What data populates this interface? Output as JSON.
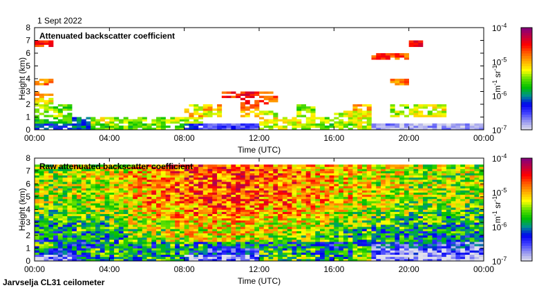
{
  "date_label": "1 Sept 2022",
  "footer": "Jarvselja CL31 ceilometer",
  "chart_data": [
    {
      "type": "heatmap",
      "title": "Attenuated backscatter coefficient",
      "xlabel": "Time (UTC)",
      "ylabel": "Height (km)",
      "xticks": [
        "00:00",
        "04:00",
        "08:00",
        "12:00",
        "16:00",
        "20:00",
        "00:00"
      ],
      "yticks": [
        "0",
        "1",
        "2",
        "3",
        "4",
        "5",
        "6",
        "7",
        "8"
      ],
      "xlim_hours": [
        0,
        24
      ],
      "ylim_km": [
        0,
        8
      ],
      "grid": false,
      "value_scale": "log10",
      "colorbar": {
        "label": "m-1 sr-1",
        "ticks": [
          "-7",
          "-6",
          "-5",
          "-4"
        ],
        "range": [
          -7,
          -4
        ],
        "placement": "right"
      },
      "cell_hours": 1,
      "cell_km": 0.5,
      "rows_bottom_up": [
        [
          -6.2,
          -6.3,
          -6.0,
          -5.6,
          -5.5,
          -5.6,
          -5.5,
          -5.6,
          -6.3,
          -6.6,
          -6.5,
          -6.6,
          -5.4,
          -5.3,
          -5.4,
          -5.6,
          -5.5,
          -5.3,
          -6.7,
          -6.8,
          -6.8,
          -6.8,
          -6.8,
          -6.8
        ],
        [
          -5.8,
          -5.6,
          -6.0,
          -5.3,
          -5.4,
          -5.5,
          -5.5,
          -5.4,
          -5.4,
          null,
          null,
          null,
          -5.2,
          -5.3,
          -5.2,
          -5.4,
          -5.3,
          -5.2,
          null,
          null,
          null,
          null,
          null,
          null
        ],
        [
          -5.6,
          -5.4,
          null,
          null,
          null,
          null,
          null,
          null,
          -5.0,
          -5.3,
          null,
          -5.1,
          -5.4,
          null,
          -5.3,
          null,
          -5.3,
          -5.2,
          null,
          -5.4,
          -5.2,
          -5.3,
          null,
          null
        ],
        [
          -5.4,
          -5.6,
          null,
          null,
          null,
          null,
          null,
          null,
          -5.2,
          -5.0,
          null,
          -4.8,
          null,
          null,
          -5.5,
          null,
          null,
          -5.0,
          null,
          -5.5,
          -5.4,
          -5.2,
          null,
          null
        ],
        [
          -5.2,
          null,
          null,
          null,
          null,
          null,
          null,
          null,
          null,
          null,
          null,
          -4.6,
          -4.7,
          null,
          null,
          null,
          null,
          null,
          null,
          null,
          null,
          null,
          null,
          null
        ],
        [
          -4.9,
          null,
          null,
          null,
          null,
          null,
          null,
          null,
          null,
          null,
          -4.6,
          -4.5,
          -4.8,
          null,
          null,
          null,
          null,
          null,
          null,
          null,
          null,
          null,
          null,
          null
        ],
        [
          null,
          null,
          null,
          null,
          null,
          null,
          null,
          null,
          null,
          null,
          null,
          null,
          null,
          null,
          null,
          null,
          null,
          null,
          null,
          null,
          null,
          null,
          null,
          null
        ],
        [
          -4.8,
          null,
          null,
          null,
          null,
          null,
          null,
          null,
          null,
          null,
          null,
          null,
          null,
          null,
          null,
          null,
          null,
          null,
          null,
          -4.8,
          null,
          null,
          null,
          null
        ],
        [
          null,
          null,
          null,
          null,
          null,
          null,
          null,
          null,
          null,
          null,
          null,
          null,
          null,
          null,
          null,
          null,
          null,
          null,
          null,
          null,
          null,
          null,
          null,
          null
        ],
        [
          null,
          null,
          null,
          null,
          null,
          null,
          null,
          null,
          null,
          null,
          null,
          null,
          null,
          null,
          null,
          null,
          null,
          null,
          null,
          null,
          null,
          null,
          null,
          null
        ],
        [
          null,
          null,
          null,
          null,
          null,
          null,
          null,
          null,
          null,
          null,
          null,
          null,
          null,
          null,
          null,
          null,
          null,
          null,
          null,
          null,
          null,
          null,
          null,
          null
        ],
        [
          null,
          null,
          null,
          null,
          null,
          null,
          null,
          null,
          null,
          null,
          null,
          null,
          null,
          null,
          null,
          null,
          null,
          null,
          -4.6,
          -4.7,
          null,
          null,
          null,
          null
        ],
        [
          null,
          null,
          null,
          null,
          null,
          null,
          null,
          null,
          null,
          null,
          null,
          null,
          null,
          null,
          null,
          null,
          null,
          null,
          null,
          null,
          null,
          null,
          null,
          null
        ],
        [
          -4.6,
          null,
          null,
          null,
          null,
          null,
          null,
          null,
          null,
          null,
          null,
          null,
          null,
          null,
          null,
          null,
          null,
          null,
          null,
          null,
          -4.5,
          null,
          null,
          null
        ],
        [
          null,
          null,
          null,
          null,
          null,
          null,
          null,
          null,
          null,
          null,
          null,
          null,
          null,
          null,
          null,
          null,
          null,
          null,
          null,
          null,
          null,
          null,
          null,
          null
        ],
        [
          null,
          null,
          null,
          null,
          null,
          null,
          null,
          null,
          null,
          null,
          null,
          null,
          null,
          null,
          null,
          null,
          null,
          null,
          null,
          null,
          null,
          null,
          null,
          null
        ]
      ]
    },
    {
      "type": "heatmap",
      "title": "Raw attenuated backscatter coefficient",
      "xlabel": "Time (UTC)",
      "ylabel": "Height (km)",
      "xticks": [
        "00:00",
        "04:00",
        "08:00",
        "12:00",
        "16:00",
        "20:00",
        "00:00"
      ],
      "yticks": [
        "0",
        "1",
        "2",
        "3",
        "4",
        "5",
        "6",
        "7",
        "8"
      ],
      "xlim_hours": [
        0,
        24
      ],
      "ylim_km": [
        0,
        8
      ],
      "grid": false,
      "value_scale": "log10",
      "colorbar": {
        "label": "m-1 sr-1",
        "ticks": [
          "-7",
          "-6",
          "-5",
          "-4"
        ],
        "range": [
          -7,
          -4
        ],
        "placement": "right"
      },
      "cell_hours": 1,
      "cell_km": 0.5,
      "rows_bottom_up": [
        [
          -6.8,
          -6.7,
          -6.2,
          -5.8,
          -5.8,
          -5.8,
          -5.7,
          -5.8,
          -6.6,
          -6.8,
          -6.8,
          -6.8,
          -5.6,
          -5.6,
          -5.6,
          -5.8,
          -5.7,
          -5.6,
          -6.9,
          -6.9,
          -6.9,
          -6.9,
          -6.9,
          -6.9
        ],
        [
          -6.0,
          -6.1,
          -6.0,
          -5.7,
          -5.8,
          -5.9,
          -5.8,
          -5.8,
          -6.0,
          -6.3,
          -6.3,
          -6.3,
          -5.7,
          -5.7,
          -5.8,
          -5.9,
          -5.9,
          -5.7,
          -6.6,
          -6.6,
          -6.6,
          -6.6,
          -6.6,
          -6.7
        ],
        [
          -5.7,
          -5.9,
          -6.1,
          -6.0,
          -5.9,
          -6.0,
          -5.9,
          -5.7,
          -5.8,
          -6.0,
          -6.0,
          -6.0,
          -5.9,
          -6.0,
          -6.0,
          -6.1,
          -6.1,
          -5.8,
          -6.4,
          -6.3,
          -6.3,
          -6.4,
          -6.4,
          -6.5
        ],
        [
          -6.0,
          -6.0,
          -5.9,
          -5.9,
          -5.8,
          -5.6,
          -5.5,
          -5.4,
          -5.3,
          -5.3,
          -5.3,
          -5.3,
          -5.4,
          -5.4,
          -5.5,
          -5.6,
          -5.7,
          -5.8,
          -5.9,
          -5.9,
          -6.0,
          -6.0,
          -6.0,
          -6.0
        ],
        [
          -5.9,
          -5.9,
          -5.8,
          -5.8,
          -5.7,
          -5.5,
          -5.4,
          -5.3,
          -5.2,
          -5.2,
          -5.2,
          -5.2,
          -5.3,
          -5.3,
          -5.4,
          -5.5,
          -5.6,
          -5.7,
          -5.8,
          -5.8,
          -5.9,
          -5.9,
          -5.9,
          -5.9
        ],
        [
          -5.8,
          -5.8,
          -5.7,
          -5.7,
          -5.6,
          -5.4,
          -5.3,
          -5.2,
          -5.1,
          -5.1,
          -5.1,
          -5.1,
          -5.2,
          -5.2,
          -5.3,
          -5.4,
          -5.5,
          -5.6,
          -5.7,
          -5.7,
          -5.8,
          -5.8,
          -5.8,
          -5.8
        ],
        [
          -5.7,
          -5.7,
          -5.6,
          -5.6,
          -5.5,
          -5.3,
          -5.2,
          -5.1,
          -5.0,
          -5.0,
          -5.0,
          -5.0,
          -5.1,
          -5.1,
          -5.2,
          -5.3,
          -5.4,
          -5.5,
          -5.6,
          -5.6,
          -5.7,
          -5.7,
          -5.7,
          -5.7
        ],
        [
          -5.6,
          -5.6,
          -5.5,
          -5.5,
          -5.4,
          -5.2,
          -5.1,
          -5.0,
          -4.9,
          -4.9,
          -4.9,
          -4.9,
          -5.0,
          -5.0,
          -5.1,
          -5.2,
          -5.3,
          -5.4,
          -5.5,
          -5.5,
          -5.6,
          -5.6,
          -5.6,
          -5.6
        ],
        [
          -5.5,
          -5.5,
          -5.4,
          -5.4,
          -5.3,
          -5.1,
          -5.0,
          -4.9,
          -4.8,
          -4.8,
          -4.8,
          -4.8,
          -4.9,
          -4.9,
          -5.0,
          -5.1,
          -5.2,
          -5.3,
          -5.4,
          -5.4,
          -5.5,
          -5.5,
          -5.5,
          -5.5
        ],
        [
          -5.4,
          -5.4,
          -5.3,
          -5.3,
          -5.2,
          -5.0,
          -4.9,
          -4.8,
          -4.7,
          -4.7,
          -4.7,
          -4.7,
          -4.8,
          -4.8,
          -4.9,
          -5.0,
          -5.1,
          -5.2,
          -5.3,
          -5.3,
          -5.4,
          -5.4,
          -5.4,
          -5.4
        ],
        [
          -5.4,
          -5.4,
          -5.3,
          -5.3,
          -5.2,
          -5.0,
          -4.9,
          -4.8,
          -4.7,
          -4.7,
          -4.7,
          -4.7,
          -4.8,
          -4.8,
          -4.9,
          -5.0,
          -5.1,
          -5.2,
          -5.3,
          -5.3,
          -5.4,
          -5.4,
          -5.4,
          -5.4
        ],
        [
          -5.4,
          -5.4,
          -5.3,
          -5.3,
          -5.2,
          -5.0,
          -4.9,
          -4.8,
          -4.7,
          -4.7,
          -4.7,
          -4.7,
          -4.8,
          -4.8,
          -4.9,
          -5.0,
          -5.1,
          -5.2,
          -5.3,
          -5.3,
          -5.4,
          -5.4,
          -5.4,
          -5.4
        ],
        [
          -5.4,
          -5.4,
          -5.3,
          -5.3,
          -5.2,
          -5.0,
          -4.9,
          -4.8,
          -4.7,
          -4.7,
          -4.7,
          -4.7,
          -4.8,
          -4.8,
          -4.9,
          -5.0,
          -5.1,
          -5.2,
          -5.3,
          -5.3,
          -5.4,
          -5.4,
          -5.4,
          -5.4
        ],
        [
          -5.4,
          -5.4,
          -5.3,
          -5.3,
          -5.2,
          -5.0,
          -4.9,
          -4.8,
          -4.7,
          -4.7,
          -4.7,
          -4.7,
          -4.8,
          -4.8,
          -4.9,
          -5.0,
          -5.1,
          -5.2,
          -5.3,
          -5.3,
          -5.4,
          -5.4,
          -5.4,
          -5.4
        ],
        [
          -5.4,
          -5.4,
          -5.3,
          -5.3,
          -5.2,
          -5.0,
          -4.9,
          -4.8,
          -4.7,
          -4.7,
          -4.7,
          -4.7,
          -4.8,
          -4.8,
          -4.9,
          -5.0,
          -5.1,
          -5.2,
          -5.3,
          -5.3,
          -5.4,
          -5.4,
          -5.4,
          -5.4
        ],
        [
          -5.4,
          -5.4,
          -5.3,
          -5.3,
          -5.2,
          -5.0,
          -4.9,
          -4.8,
          -4.7,
          -4.7,
          -4.7,
          -4.7,
          -4.8,
          -4.8,
          -4.9,
          -5.0,
          -5.1,
          -5.2,
          -5.3,
          -5.3,
          -5.4,
          -5.4,
          -5.4,
          -5.4
        ]
      ]
    }
  ],
  "colormap": [
    "#e0e0ec",
    "#9898f0",
    "#4040ff",
    "#0000f0",
    "#009090",
    "#00c000",
    "#60e000",
    "#ffff00",
    "#ffb000",
    "#ff6000",
    "#ff0000",
    "#c00040",
    "#800080"
  ]
}
